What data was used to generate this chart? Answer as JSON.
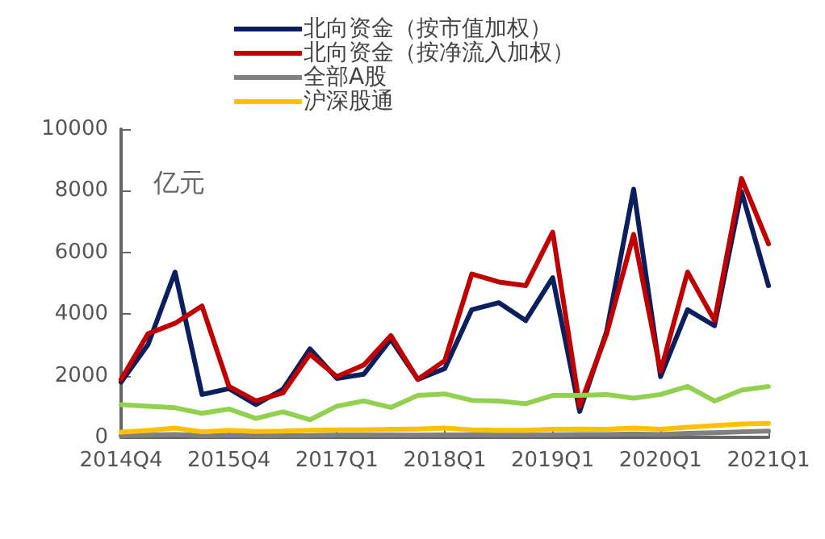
{
  "chart_data": {
    "type": "line",
    "ylabel": "亿元",
    "categories": [
      "2014Q4",
      null,
      null,
      null,
      "2015Q4",
      null,
      null,
      null,
      "2017Q1",
      null,
      null,
      null,
      "2018Q1",
      null,
      null,
      null,
      "2019Q1",
      null,
      null,
      null,
      "2020Q1",
      null,
      null,
      null,
      "2021Q1"
    ],
    "series": [
      {
        "name": "北向资金（按市值加权）",
        "color": "#0a1f5c",
        "values": [
          1790,
          3010,
          5360,
          1390,
          1580,
          1060,
          1560,
          2870,
          1910,
          2050,
          3180,
          1880,
          2230,
          4140,
          4370,
          3790,
          5180,
          840,
          3440,
          8050,
          1970,
          4140,
          3620,
          7970,
          4920
        ]
      },
      {
        "name": "北向资金（按净流入加权）",
        "color": "#c00000",
        "values": [
          1880,
          3360,
          3700,
          4260,
          1650,
          1180,
          1440,
          2700,
          1970,
          2350,
          3300,
          1880,
          2490,
          5300,
          5040,
          4920,
          6660,
          1010,
          3360,
          6580,
          2140,
          5360,
          3790,
          8400,
          6280
        ]
      },
      {
        "name": "全部A股",
        "color": "#808080",
        "values": [
          50,
          70,
          90,
          60,
          70,
          50,
          60,
          60,
          70,
          70,
          80,
          70,
          80,
          80,
          70,
          70,
          80,
          90,
          90,
          110,
          90,
          130,
          150,
          180,
          200
        ]
      },
      {
        "color": "#92d050",
        "values": [
          1060,
          1010,
          960,
          780,
          920,
          610,
          830,
          570,
          1010,
          1180,
          970,
          1360,
          1410,
          1200,
          1180,
          1090,
          1360,
          1360,
          1390,
          1270,
          1390,
          1650,
          1180,
          1530,
          1650
        ]
      },
      {
        "name": "沪深股通",
        "color": "#ffc000",
        "values": [
          170,
          220,
          300,
          180,
          230,
          190,
          200,
          230,
          240,
          240,
          260,
          270,
          300,
          240,
          230,
          230,
          260,
          270,
          260,
          300,
          260,
          330,
          380,
          430,
          450
        ]
      }
    ],
    "ylim": [
      0,
      10000
    ],
    "yticks": [
      0,
      2000,
      4000,
      6000,
      8000,
      10000
    ],
    "grid": false,
    "legend": "top",
    "marker": "none",
    "line_style": "solid"
  }
}
